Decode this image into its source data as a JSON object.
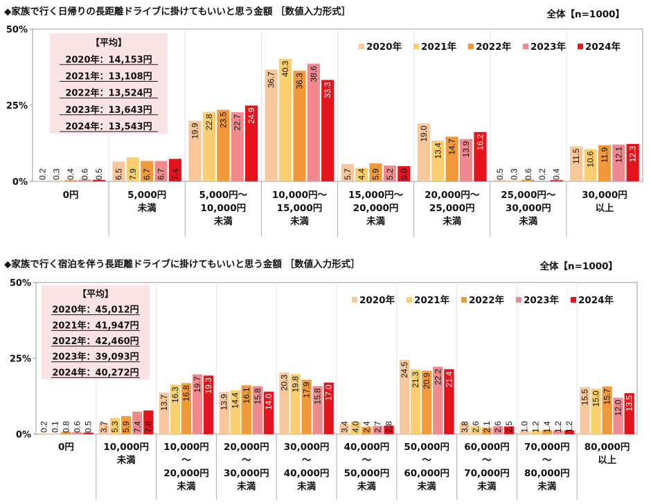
{
  "colors": {
    "2020年": "#F8C79B",
    "2021年": "#FBCF70",
    "2022年": "#F29A3A",
    "2023年": "#F08A8E",
    "2024年": "#E5131B"
  },
  "chart_data": [
    {
      "type": "bar",
      "title": "◆家族で行く日帰りの長距離ドライブに掛けてもいいと思う金額 ［数値入力形式］",
      "sample": "全体【n=1000】",
      "ylim": [
        0,
        50
      ],
      "yticks": [
        "0%",
        "25%",
        "50%"
      ],
      "legend_position": "top-right",
      "average": {
        "heading": "【平均】",
        "lines": [
          "2020年：14,153円",
          "2021年：13,108円",
          "2022年：13,524円",
          "2023年：13,643円",
          "2024年：13,543円"
        ]
      },
      "categories": [
        [
          "0円"
        ],
        [
          "5,000円",
          "未満"
        ],
        [
          "5,000円～",
          "10,000円",
          "未満"
        ],
        [
          "10,000円～",
          "15,000円",
          "未満"
        ],
        [
          "15,000円～",
          "20,000円",
          "未満"
        ],
        [
          "20,000円～",
          "25,000円",
          "未満"
        ],
        [
          "25,000円～",
          "30,000円",
          "未満"
        ],
        [
          "30,000円",
          "以上"
        ]
      ],
      "series": [
        {
          "name": "2020年",
          "values": [
            0.2,
            6.5,
            19.9,
            36.7,
            5.7,
            19.0,
            0.5,
            11.5
          ]
        },
        {
          "name": "2021年",
          "values": [
            0.3,
            7.9,
            22.8,
            40.3,
            4.4,
            13.4,
            0.3,
            10.6
          ]
        },
        {
          "name": "2022年",
          "values": [
            0.4,
            6.7,
            23.5,
            36.3,
            5.9,
            14.7,
            0.6,
            11.9
          ]
        },
        {
          "name": "2023年",
          "values": [
            0.6,
            6.7,
            22.7,
            38.6,
            5.2,
            13.9,
            0.2,
            12.1
          ]
        },
        {
          "name": "2024年",
          "values": [
            0.5,
            7.4,
            24.9,
            33.3,
            5.0,
            16.2,
            0.4,
            12.3
          ]
        }
      ]
    },
    {
      "type": "bar",
      "title": "◆家族で行く宿泊を伴う長距離ドライブに掛けてもいいと思う金額 ［数値入力形式］",
      "sample": "全体【n=1000】",
      "ylim": [
        0,
        50
      ],
      "yticks": [
        "0%",
        "25%",
        "50%"
      ],
      "legend_position": "top-right",
      "average": {
        "heading": "【平均】",
        "lines": [
          "2020年：45,012円",
          "2021年：41,947円",
          "2022年：42,460円",
          "2023年：39,093円",
          "2024年：40,272円"
        ]
      },
      "categories": [
        [
          "0円"
        ],
        [
          "10,000円",
          "未満"
        ],
        [
          "10,000円",
          "～",
          "20,000円",
          "未満"
        ],
        [
          "20,000円",
          "～",
          "30,000円",
          "未満"
        ],
        [
          "30,000円",
          "～",
          "40,000円",
          "未満"
        ],
        [
          "40,000円",
          "～",
          "50,000円",
          "未満"
        ],
        [
          "50,000円",
          "～",
          "60,000円",
          "未満"
        ],
        [
          "60,000円",
          "～",
          "70,000円",
          "未満"
        ],
        [
          "70,000円",
          "～",
          "80,000円",
          "未満"
        ],
        [
          "80,000円",
          "以上"
        ]
      ],
      "series": [
        {
          "name": "2020年",
          "values": [
            0.2,
            3.7,
            13.7,
            13.9,
            20.3,
            3.4,
            24.5,
            3.8,
            1.0,
            15.5
          ]
        },
        {
          "name": "2021年",
          "values": [
            0.1,
            5.3,
            16.3,
            14.4,
            19.8,
            4.0,
            21.3,
            2.6,
            1.2,
            15.0
          ]
        },
        {
          "name": "2022年",
          "values": [
            0.8,
            5.9,
            16.8,
            16.1,
            17.9,
            2.4,
            20.9,
            2.1,
            1.4,
            15.7
          ]
        },
        {
          "name": "2023年",
          "values": [
            0.6,
            7.4,
            19.7,
            15.8,
            15.8,
            2.7,
            22.2,
            2.6,
            1.2,
            12.0
          ]
        },
        {
          "name": "2024年",
          "values": [
            0.5,
            7.8,
            19.3,
            14.0,
            17.0,
            2.8,
            21.4,
            2.5,
            1.2,
            13.5
          ]
        }
      ]
    }
  ]
}
